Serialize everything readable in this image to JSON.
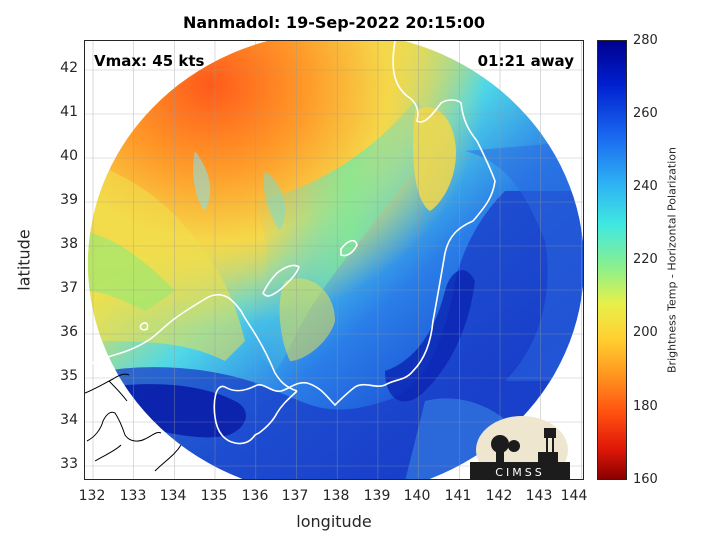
{
  "header": {
    "title": "Nanmadol: 19-Sep-2022 20:15:00",
    "vmax": "Vmax: 45 kts",
    "away": "01:21 away"
  },
  "axes": {
    "xlabel": "longitude",
    "ylabel": "latitude",
    "xticks": [
      "132",
      "133",
      "134",
      "135",
      "136",
      "137",
      "138",
      "139",
      "140",
      "141",
      "142",
      "143",
      "144"
    ],
    "yticks": [
      "42",
      "41",
      "40",
      "39",
      "38",
      "37",
      "36",
      "35",
      "34",
      "33"
    ],
    "xlim": [
      132,
      144.3
    ],
    "ylim": [
      32.7,
      42.7
    ]
  },
  "colorbar": {
    "label": "Brightness Temp - Horizontal Polarization",
    "ticks": [
      "280",
      "260",
      "240",
      "220",
      "200",
      "180",
      "160"
    ],
    "range": [
      160,
      280
    ]
  },
  "logo": {
    "text": "CIMSS"
  },
  "colors": {
    "cold_deep": "#00008f",
    "cold": "#1e4fd8",
    "cyan": "#35d0f0",
    "green": "#8ee878",
    "yellow": "#f2e84a",
    "orange": "#ff9e28",
    "red": "#ff3b10"
  }
}
